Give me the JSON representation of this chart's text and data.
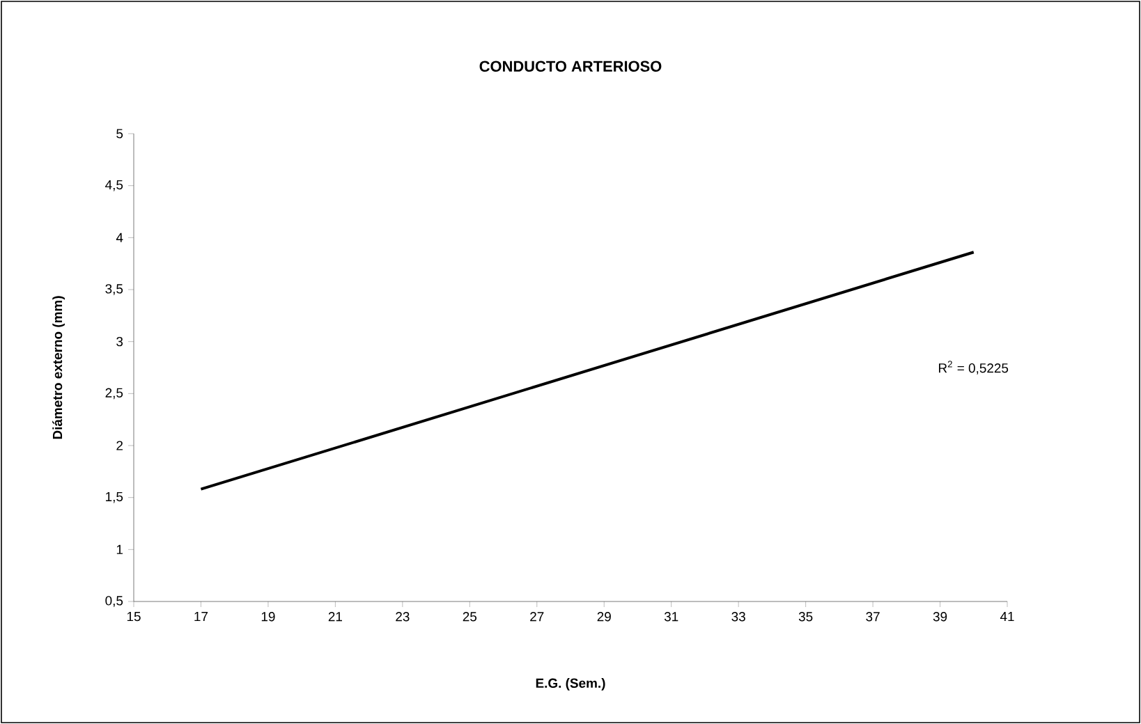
{
  "chart_data": {
    "type": "line",
    "title": "CONDUCTO ARTERIOSO",
    "xlabel": "E.G. (Sem.)",
    "ylabel": "Diámetro externo (mm)",
    "x": [
      17,
      40
    ],
    "series": [
      {
        "color": "#000000",
        "values": [
          1.58,
          3.86
        ]
      }
    ],
    "xlim": [
      15,
      41
    ],
    "xticks": [
      15,
      17,
      19,
      21,
      23,
      25,
      27,
      29,
      31,
      33,
      35,
      37,
      39,
      41
    ],
    "ylim": [
      0.5,
      5
    ],
    "yticks": [
      {
        "value": 0.5,
        "label": "0,5"
      },
      1,
      {
        "value": 1.5,
        "label": "1,5"
      },
      2,
      {
        "value": 2.5,
        "label": "2,5"
      },
      3,
      {
        "value": 3.5,
        "label": "3,5"
      },
      4,
      {
        "value": 4.5,
        "label": "4,5"
      },
      5
    ],
    "annotations": [
      "R$^{2}$ = 0,5225"
    ],
    "grid": false,
    "marker": "none",
    "line_style": "solid"
  }
}
